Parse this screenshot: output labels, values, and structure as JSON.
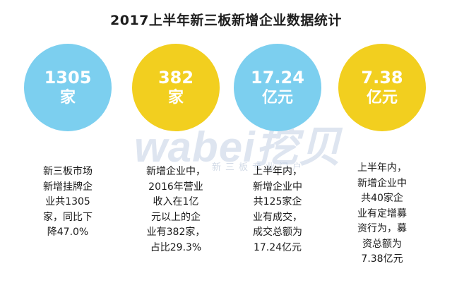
{
  "title": "2017上半年新三板新增企业数据统计",
  "watermark": {
    "logo": "wabei挖贝",
    "sub": "新三板专业门户"
  },
  "colors": {
    "blue": "#7ccfef",
    "yellow": "#f2cf1f"
  },
  "stats": [
    {
      "value": "1305",
      "unit": "家",
      "color": "blue",
      "lines": [
        "新三板市场",
        "新增挂牌企",
        "业共1305",
        "家，同比下",
        "降47.0%"
      ]
    },
    {
      "value": "382",
      "unit": "家",
      "color": "yellow",
      "lines": [
        "新增企业中，",
        "2016年营业",
        "收入在1亿",
        "元以上的企",
        "业有382家，",
        "占比29.3%"
      ]
    },
    {
      "value": "17.24",
      "unit": "亿元",
      "color": "blue",
      "lines": [
        "上半年内，",
        "新增企业中",
        "共125家企",
        "业有成交，",
        "成交总额为",
        "17.24亿元"
      ]
    },
    {
      "value": "7.38",
      "unit": "亿元",
      "color": "yellow",
      "lines": [
        "上半年内，",
        "新增企业中",
        "共40家企",
        "业有定增募",
        "资行为，募",
        "资总额为",
        "7.38亿元"
      ]
    }
  ]
}
